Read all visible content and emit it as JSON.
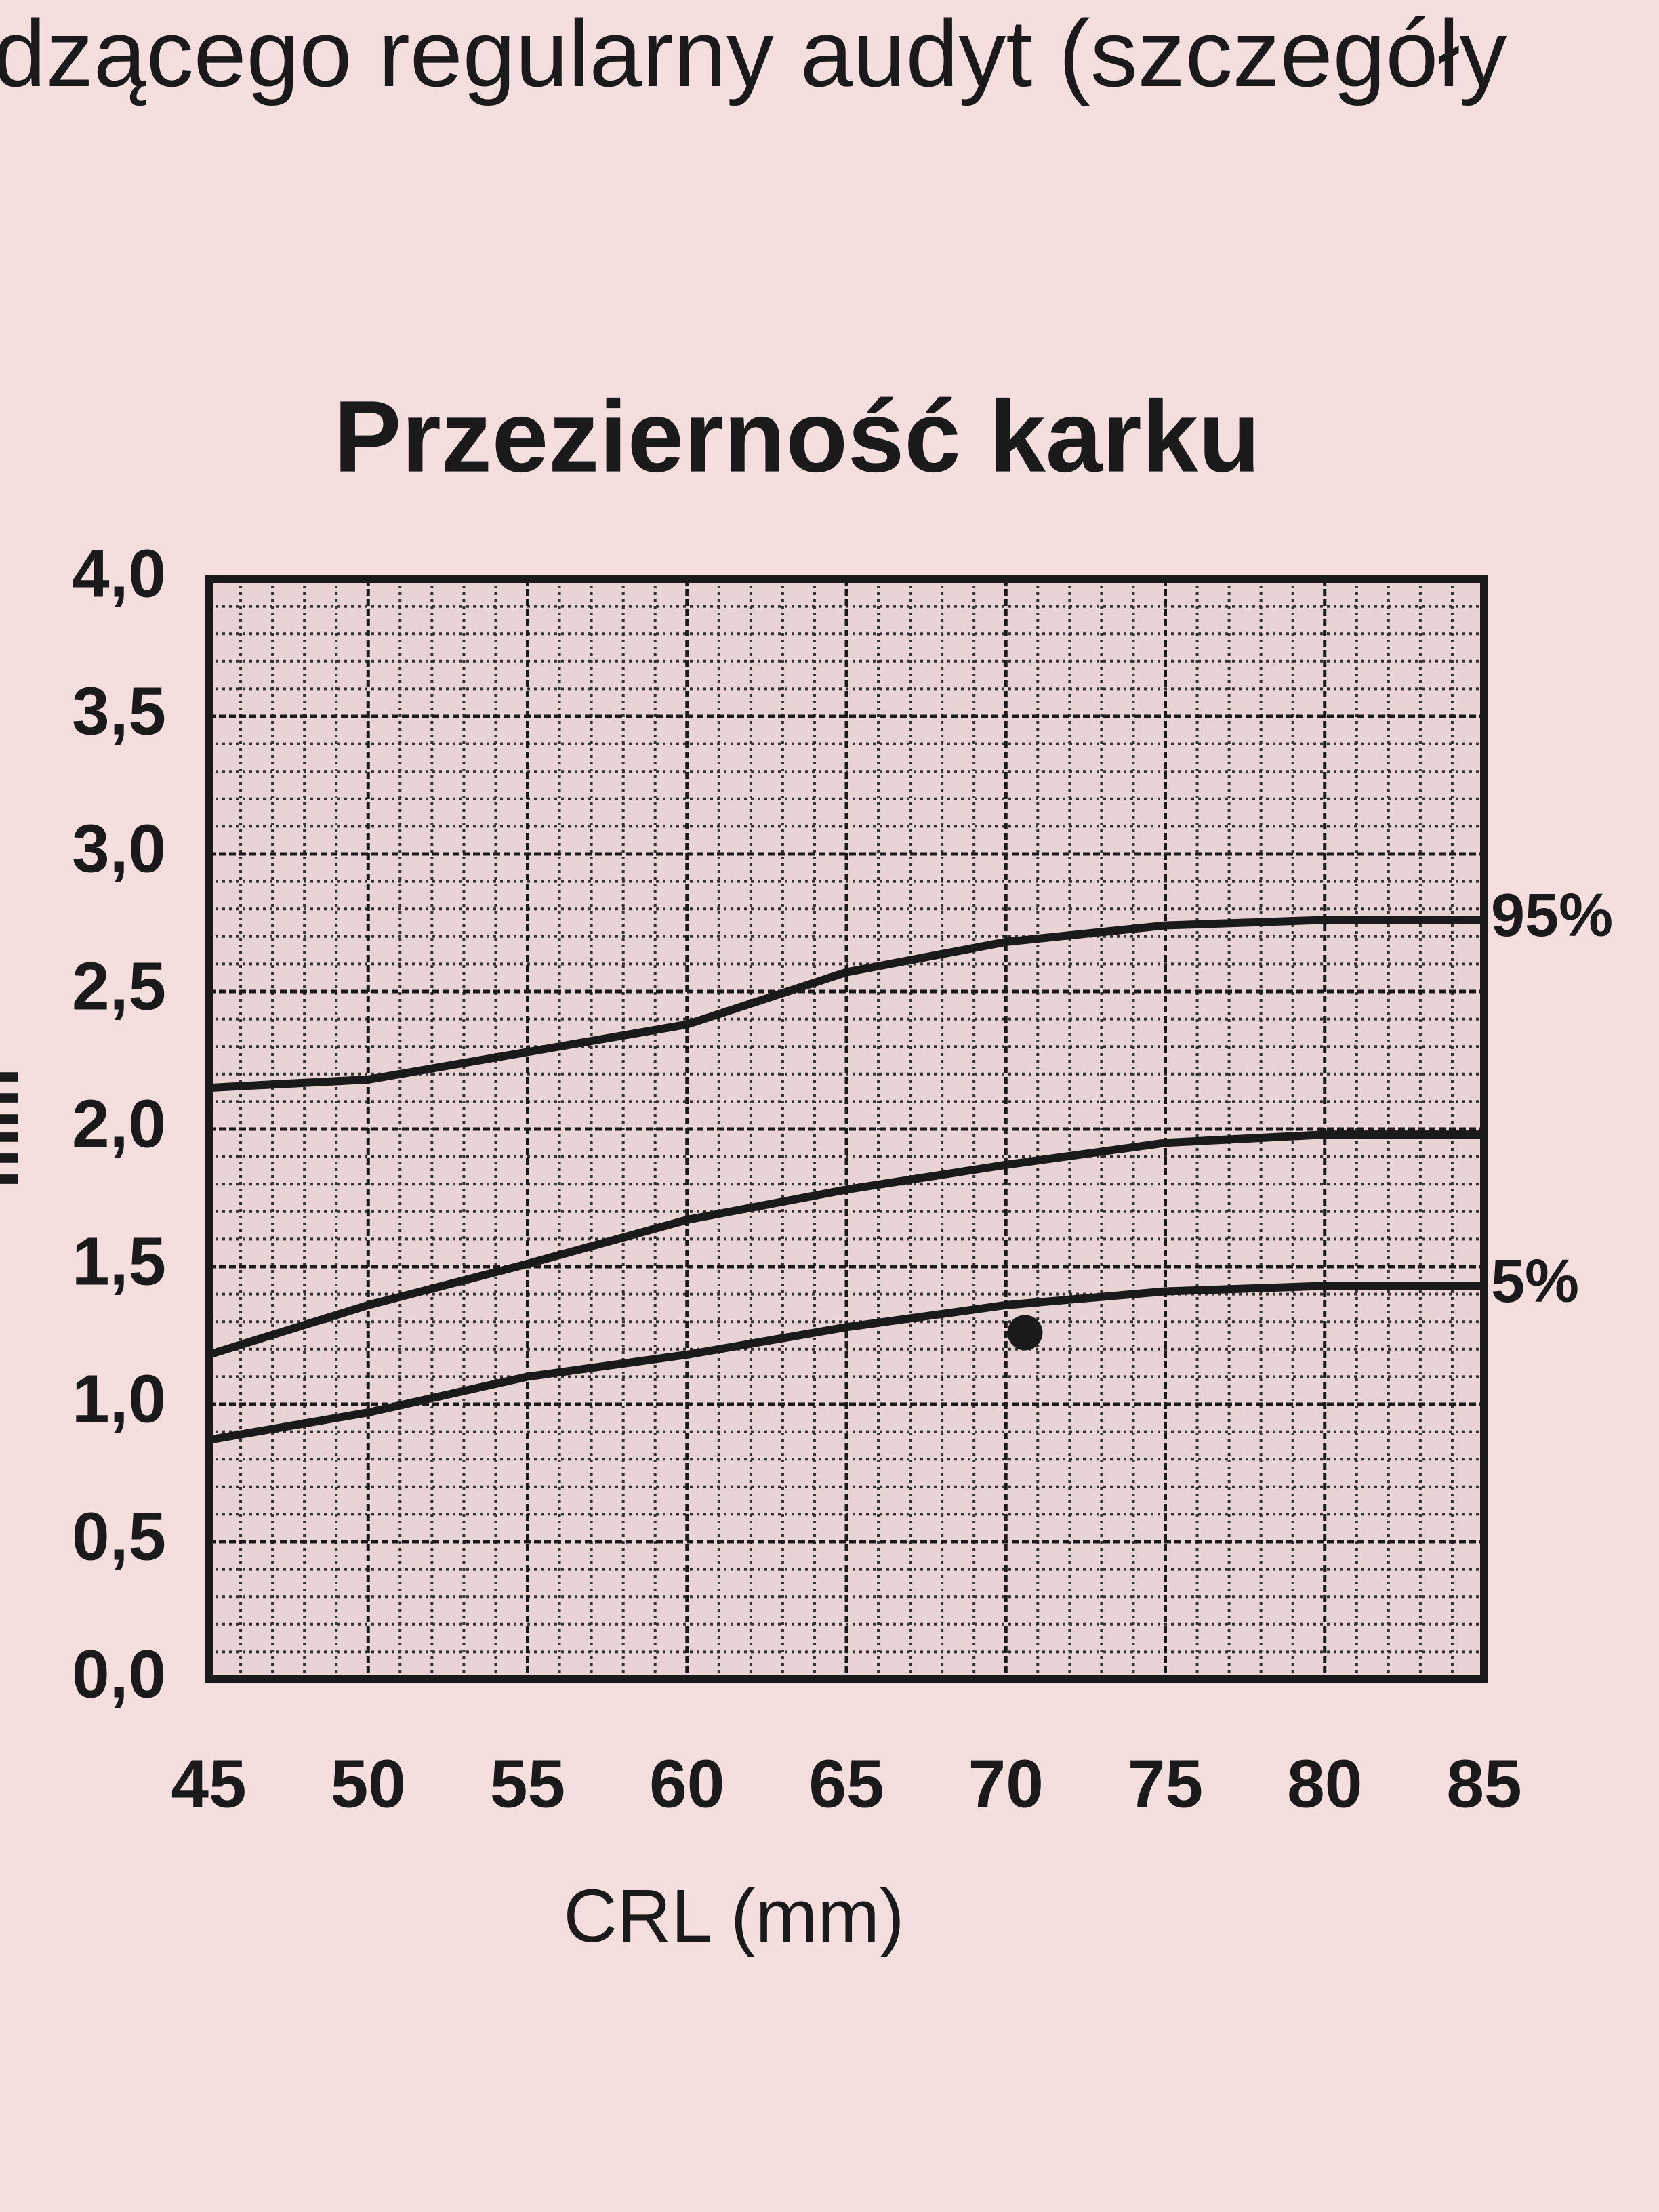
{
  "header_fragment": "dzącego regularny audyt (szczegóły",
  "chart_data": {
    "type": "line",
    "title": "Przezierność karku",
    "xlabel": "CRL (mm)",
    "ylabel": "mm",
    "x": [
      45,
      50,
      55,
      60,
      65,
      70,
      75,
      80,
      85
    ],
    "series": [
      {
        "name": "95%",
        "color": "#1a1a1a",
        "values": [
          2.15,
          2.18,
          2.28,
          2.38,
          2.57,
          2.68,
          2.74,
          2.76,
          2.76
        ]
      },
      {
        "color": "#1a1a1a",
        "values": [
          1.18,
          1.36,
          1.51,
          1.67,
          1.78,
          1.87,
          1.95,
          1.98,
          1.98
        ]
      },
      {
        "name": "5%",
        "color": "#1a1a1a",
        "values": [
          0.87,
          0.97,
          1.1,
          1.18,
          1.28,
          1.36,
          1.41,
          1.43,
          1.43
        ]
      }
    ],
    "measurement": {
      "x": 70.6,
      "y": 1.26
    },
    "xlim": [
      45,
      85
    ],
    "xticks": [
      45,
      50,
      55,
      60,
      65,
      70,
      75,
      80,
      85
    ],
    "ylim": [
      0,
      4
    ],
    "yticks": [
      {
        "value": 0,
        "label": "0,0"
      },
      {
        "value": 0.5,
        "label": "0,5"
      },
      {
        "value": 1,
        "label": "1,0"
      },
      {
        "value": 1.5,
        "label": "1,5"
      },
      {
        "value": 2,
        "label": "2,0"
      },
      {
        "value": 2.5,
        "label": "2,5"
      },
      {
        "value": 3,
        "label": "3,0"
      },
      {
        "value": 3.5,
        "label": "3,5"
      },
      {
        "value": 4,
        "label": "4,0"
      }
    ],
    "grid": true,
    "minor_grid": true
  }
}
